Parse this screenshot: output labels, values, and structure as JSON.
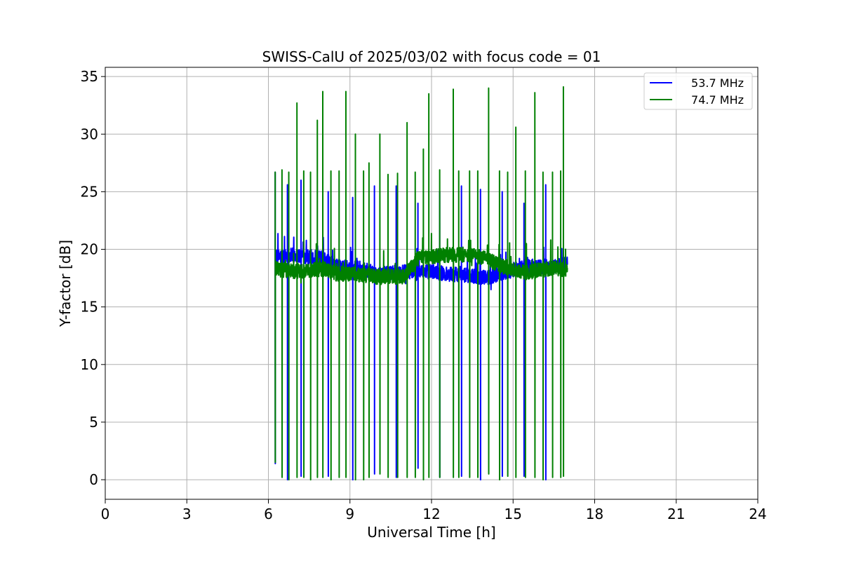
{
  "chart_data": {
    "type": "line",
    "title": "SWISS-CalU of 2025/03/02 with focus code = 01",
    "xlabel": "Universal Time [h]",
    "ylabel": "Y-factor [dB]",
    "xlim": [
      0,
      24
    ],
    "ylim": [
      -1.7,
      35.8
    ],
    "xticks": [
      0,
      3,
      6,
      9,
      12,
      15,
      18,
      21,
      24
    ],
    "xtick_labels": [
      "0",
      "3",
      "6",
      "9",
      "12",
      "15",
      "18",
      "21",
      "24"
    ],
    "yticks": [
      0,
      5,
      10,
      15,
      20,
      25,
      30,
      35
    ],
    "ytick_labels": [
      "0",
      "5",
      "10",
      "15",
      "20",
      "25",
      "30",
      "35"
    ],
    "grid": true,
    "legend_position": "top-right",
    "x_range_of_data": [
      6.25,
      17.0
    ],
    "series": [
      {
        "name": "53.7 MHz",
        "color": "#0000ff",
        "baseline_points": [
          [
            6.25,
            19.3
          ],
          [
            7.0,
            19.5
          ],
          [
            8.0,
            19.2
          ],
          [
            8.5,
            18.5
          ],
          [
            9.5,
            18.3
          ],
          [
            10.0,
            17.8
          ],
          [
            11.0,
            18.0
          ],
          [
            11.5,
            18.2
          ],
          [
            12.5,
            17.9
          ],
          [
            13.5,
            17.7
          ],
          [
            14.0,
            17.5
          ],
          [
            14.5,
            17.9
          ],
          [
            15.5,
            18.5
          ],
          [
            16.5,
            18.5
          ],
          [
            17.0,
            18.8
          ]
        ],
        "spikes": [
          {
            "x": 6.25,
            "peak": 26.7,
            "dip": 1.4
          },
          {
            "x": 6.7,
            "peak": 25.6,
            "dip": 0.0
          },
          {
            "x": 7.2,
            "peak": 26.0,
            "dip": 0.3
          },
          {
            "x": 8.2,
            "peak": 25.0,
            "dip": 0.3
          },
          {
            "x": 9.1,
            "peak": 24.5,
            "dip": 0.0
          },
          {
            "x": 9.9,
            "peak": 25.5,
            "dip": 0.5
          },
          {
            "x": 10.7,
            "peak": 25.5,
            "dip": 0.2
          },
          {
            "x": 11.5,
            "peak": 24.0,
            "dip": 1.0
          },
          {
            "x": 12.3,
            "peak": 25.0,
            "dip": 0.2
          },
          {
            "x": 13.1,
            "peak": 25.5,
            "dip": 0.3
          },
          {
            "x": 13.8,
            "peak": 25.2,
            "dip": 0.0
          },
          {
            "x": 14.6,
            "peak": 25.0,
            "dip": 0.3
          },
          {
            "x": 15.4,
            "peak": 24.0,
            "dip": 0.3
          },
          {
            "x": 16.2,
            "peak": 25.6,
            "dip": 0.0
          }
        ]
      },
      {
        "name": "74.7 MHz",
        "color": "#008000",
        "baseline_points": [
          [
            6.25,
            18.3
          ],
          [
            7.0,
            18.1
          ],
          [
            8.0,
            18.3
          ],
          [
            8.5,
            17.9
          ],
          [
            9.5,
            17.8
          ],
          [
            10.0,
            17.6
          ],
          [
            11.0,
            17.6
          ],
          [
            11.5,
            19.2
          ],
          [
            12.5,
            19.5
          ],
          [
            13.5,
            19.5
          ],
          [
            14.0,
            19.2
          ],
          [
            14.5,
            18.6
          ],
          [
            15.5,
            18.0
          ],
          [
            16.5,
            18.4
          ],
          [
            17.0,
            18.2
          ]
        ],
        "spikes": [
          {
            "x": 6.25,
            "peak": 26.7,
            "dip": 1.5
          },
          {
            "x": 6.5,
            "peak": 26.9,
            "dip": 0.2
          },
          {
            "x": 6.75,
            "peak": 26.7,
            "dip": 0.0
          },
          {
            "x": 7.05,
            "peak": 32.7,
            "dip": 0.2
          },
          {
            "x": 7.3,
            "peak": 26.8,
            "dip": 0.2
          },
          {
            "x": 7.55,
            "peak": 26.7,
            "dip": 0.0
          },
          {
            "x": 7.8,
            "peak": 31.2,
            "dip": 0.2
          },
          {
            "x": 8.0,
            "peak": 33.7,
            "dip": 0.2
          },
          {
            "x": 8.3,
            "peak": 26.8,
            "dip": 0.0
          },
          {
            "x": 8.6,
            "peak": 26.8,
            "dip": 0.2
          },
          {
            "x": 8.85,
            "peak": 33.7,
            "dip": 0.2
          },
          {
            "x": 9.2,
            "peak": 30.0,
            "dip": 0.0
          },
          {
            "x": 9.5,
            "peak": 26.8,
            "dip": 0.0
          },
          {
            "x": 9.7,
            "peak": 27.5,
            "dip": 0.2
          },
          {
            "x": 10.1,
            "peak": 30.0,
            "dip": 0.5
          },
          {
            "x": 10.4,
            "peak": 26.5,
            "dip": 0.2
          },
          {
            "x": 10.75,
            "peak": 26.6,
            "dip": 0.2
          },
          {
            "x": 11.1,
            "peak": 31.0,
            "dip": 0.2
          },
          {
            "x": 11.4,
            "peak": 26.7,
            "dip": 0.2
          },
          {
            "x": 11.7,
            "peak": 28.7,
            "dip": 0.0
          },
          {
            "x": 11.9,
            "peak": 33.5,
            "dip": 0.2
          },
          {
            "x": 12.3,
            "peak": 26.9,
            "dip": 0.2
          },
          {
            "x": 12.8,
            "peak": 33.9,
            "dip": 0.2
          },
          {
            "x": 13.0,
            "peak": 26.8,
            "dip": 0.2
          },
          {
            "x": 13.4,
            "peak": 26.8,
            "dip": 0.2
          },
          {
            "x": 13.7,
            "peak": 26.8,
            "dip": 0.2
          },
          {
            "x": 14.1,
            "peak": 34.0,
            "dip": 0.5
          },
          {
            "x": 14.5,
            "peak": 26.8,
            "dip": 0.0
          },
          {
            "x": 14.8,
            "peak": 26.7,
            "dip": 0.3
          },
          {
            "x": 15.1,
            "peak": 30.6,
            "dip": 0.2
          },
          {
            "x": 15.45,
            "peak": 26.8,
            "dip": 0.2
          },
          {
            "x": 15.8,
            "peak": 33.6,
            "dip": 0.2
          },
          {
            "x": 16.1,
            "peak": 26.7,
            "dip": 0.0
          },
          {
            "x": 16.45,
            "peak": 26.7,
            "dip": 0.2
          },
          {
            "x": 16.75,
            "peak": 26.8,
            "dip": 0.2
          },
          {
            "x": 16.85,
            "peak": 34.1,
            "dip": 0.3
          }
        ]
      }
    ]
  }
}
